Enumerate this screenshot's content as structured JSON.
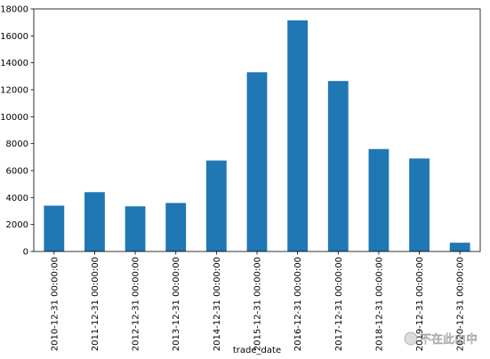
{
  "chart_data": {
    "type": "bar",
    "categories": [
      "2010-12-31 00:00:00",
      "2011-12-31 00:00:00",
      "2012-12-31 00:00:00",
      "2013-12-31 00:00:00",
      "2014-12-31 00:00:00",
      "2015-12-31 00:00:00",
      "2016-12-31 00:00:00",
      "2017-12-31 00:00:00",
      "2018-12-31 00:00:00",
      "2019-12-31 00:00:00",
      "2020-12-31 00:00:00"
    ],
    "values": [
      3400,
      4400,
      3350,
      3600,
      6750,
      13300,
      17150,
      12650,
      7600,
      6900,
      650
    ],
    "title": "",
    "xlabel": "trade_date",
    "ylabel": "",
    "ylim": [
      0,
      18000
    ],
    "yticks": [
      0,
      2000,
      4000,
      6000,
      8000,
      10000,
      12000,
      14000,
      16000,
      18000
    ],
    "grid": false,
    "legend": "none",
    "bar_color": "#1f77b4"
  },
  "watermark": {
    "text": "不在此山中"
  }
}
